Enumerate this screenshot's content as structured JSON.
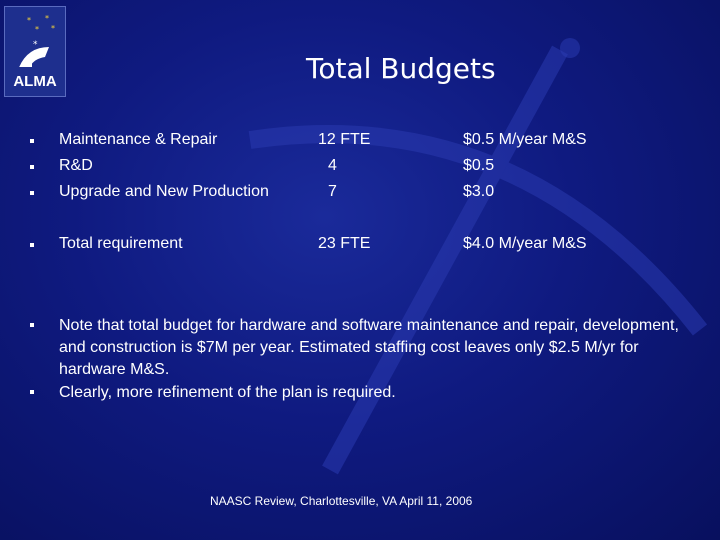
{
  "logo": {
    "text": "ALMA"
  },
  "title": "Total Budgets",
  "budget_rows": [
    {
      "label": "Maintenance & Repair",
      "fte": "12 FTE",
      "cost": "$0.5 M/year M&S"
    },
    {
      "label": "R&D",
      "fte": "4",
      "cost": "$0.5"
    },
    {
      "label": "Upgrade and New Production",
      "fte": "7",
      "cost": "$3.0"
    }
  ],
  "total_row": {
    "label": "Total requirement",
    "fte": "23 FTE",
    "cost": "$4.0 M/year M&S"
  },
  "notes": [
    "Note that total budget for hardware and software maintenance and repair, development, and construction is $7M per year.  Estimated staffing cost leaves only $2.5 M/yr for hardware M&S.",
    "Clearly, more refinement of the plan is required."
  ],
  "footer": "NAASC Review, Charlottesville, VA   April 11, 2006"
}
